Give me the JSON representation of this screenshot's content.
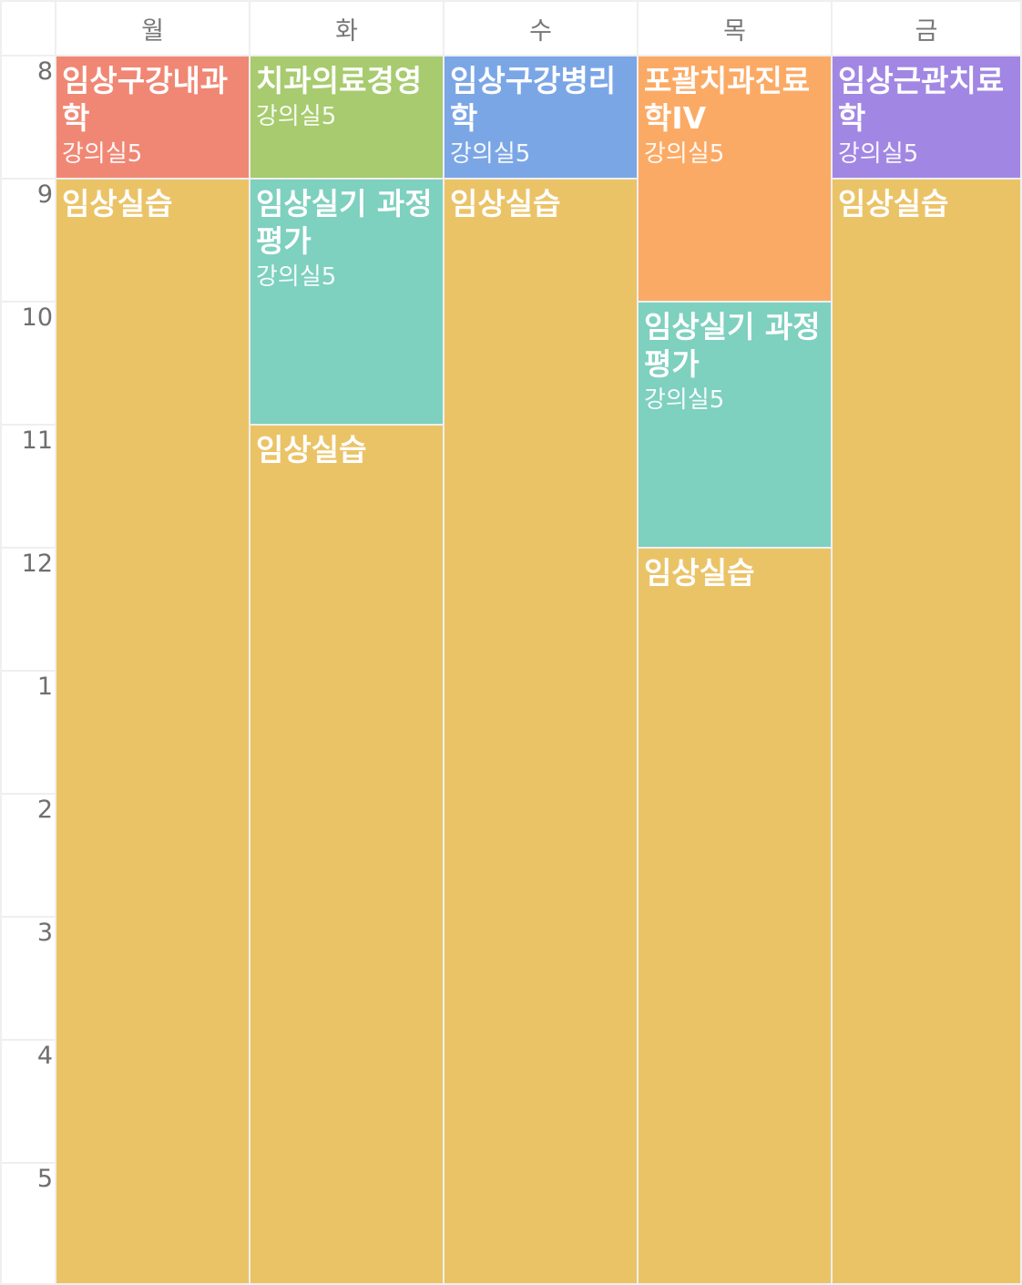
{
  "days": [
    "월",
    "화",
    "수",
    "목",
    "금"
  ],
  "hours": [
    "8",
    "9",
    "10",
    "11",
    "12",
    "1",
    "2",
    "3",
    "4",
    "5"
  ],
  "courses": [
    {
      "day": 0,
      "start": 8,
      "end": 9,
      "name": "임상구강내과학",
      "room": "강의실5",
      "color": "#f08774"
    },
    {
      "day": 0,
      "start": 9,
      "end": 18.0,
      "name": "임상실습",
      "room": "",
      "color": "#ebc367"
    },
    {
      "day": 1,
      "start": 8,
      "end": 9,
      "name": "치과의료경영",
      "room": "강의실5",
      "color": "#a7cb6e"
    },
    {
      "day": 1,
      "start": 9,
      "end": 11,
      "name": "임상실기 과정평가",
      "room": "강의실5",
      "color": "#7ed0bf"
    },
    {
      "day": 1,
      "start": 11,
      "end": 18.0,
      "name": "임상실습",
      "room": "",
      "color": "#ebc367"
    },
    {
      "day": 2,
      "start": 8,
      "end": 9,
      "name": "임상구강병리학",
      "room": "강의실5",
      "color": "#7ba6e6"
    },
    {
      "day": 2,
      "start": 9,
      "end": 18.0,
      "name": "임상실습",
      "room": "",
      "color": "#ebc367"
    },
    {
      "day": 3,
      "start": 8,
      "end": 10,
      "name": "포괄치과진료학IV",
      "room": "강의실5",
      "color": "#fbaa65"
    },
    {
      "day": 3,
      "start": 10,
      "end": 12,
      "name": "임상실기 과정평가",
      "room": "강의실5",
      "color": "#7ed0bf"
    },
    {
      "day": 3,
      "start": 12,
      "end": 18.0,
      "name": "임상실습",
      "room": "",
      "color": "#ebc367"
    },
    {
      "day": 4,
      "start": 8,
      "end": 9,
      "name": "임상근관치료학",
      "room": "강의실5",
      "color": "#a187e3"
    },
    {
      "day": 4,
      "start": 9,
      "end": 18.0,
      "name": "임상실습",
      "room": "",
      "color": "#ebc367"
    }
  ]
}
